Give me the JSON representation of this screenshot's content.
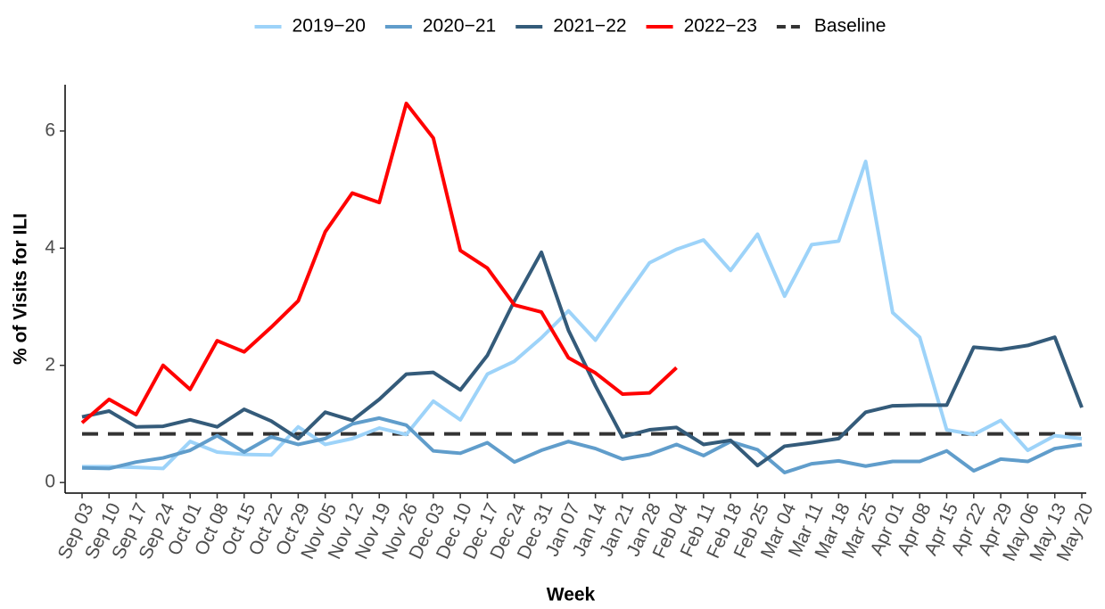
{
  "chart_data": {
    "type": "line",
    "x_label": "Week",
    "y_label": "% of Visits for ILI",
    "categories": [
      "Sep 03",
      "Sep 10",
      "Sep 17",
      "Sep 24",
      "Oct 01",
      "Oct 08",
      "Oct 15",
      "Oct 22",
      "Oct 29",
      "Nov 05",
      "Nov 12",
      "Nov 19",
      "Nov 26",
      "Dec 03",
      "Dec 10",
      "Dec 17",
      "Dec 24",
      "Dec 31",
      "Jan 07",
      "Jan 14",
      "Jan 21",
      "Jan 28",
      "Feb 04",
      "Feb 11",
      "Feb 18",
      "Feb 25",
      "Mar 04",
      "Mar 11",
      "Mar 18",
      "Mar 25",
      "Apr 01",
      "Apr 08",
      "Apr 15",
      "Apr 22",
      "Apr 29",
      "May 06",
      "May 13",
      "May 20"
    ],
    "series": [
      {
        "name": "2019−20",
        "color": "#9dd3f9",
        "values": [
          0.27,
          0.27,
          0.26,
          0.24,
          0.7,
          0.52,
          0.48,
          0.47,
          0.95,
          0.65,
          0.75,
          0.93,
          0.82,
          1.39,
          1.07,
          1.85,
          2.07,
          2.47,
          2.93,
          2.43,
          3.1,
          3.75,
          3.98,
          4.14,
          3.62,
          4.24,
          3.18,
          4.06,
          4.12,
          5.48,
          2.9,
          2.48,
          0.9,
          0.82,
          1.06,
          0.55,
          0.8,
          0.75
        ]
      },
      {
        "name": "2020−21",
        "color": "#609dcb",
        "values": [
          0.25,
          0.24,
          0.35,
          0.42,
          0.55,
          0.8,
          0.52,
          0.78,
          0.65,
          0.75,
          1.0,
          1.1,
          0.98,
          0.54,
          0.5,
          0.68,
          0.35,
          0.55,
          0.7,
          0.58,
          0.4,
          0.48,
          0.65,
          0.46,
          0.7,
          0.56,
          0.17,
          0.32,
          0.37,
          0.28,
          0.36,
          0.36,
          0.54,
          0.2,
          0.4,
          0.36,
          0.58,
          0.65
        ]
      },
      {
        "name": "2021−22",
        "color": "#345b7a",
        "values": [
          1.12,
          1.22,
          0.95,
          0.96,
          1.07,
          0.95,
          1.25,
          1.05,
          0.75,
          1.2,
          1.06,
          1.42,
          1.85,
          1.88,
          1.58,
          2.17,
          3.1,
          3.93,
          2.6,
          1.65,
          0.78,
          0.9,
          0.94,
          0.65,
          0.72,
          0.29,
          0.62,
          0.68,
          0.75,
          1.2,
          1.31,
          1.32,
          1.32,
          2.31,
          2.27,
          2.34,
          2.48,
          1.28
        ]
      },
      {
        "name": "2022−23",
        "color": "#ff0000",
        "values": [
          1.02,
          1.42,
          1.16,
          2.0,
          1.59,
          2.42,
          2.23,
          2.65,
          3.1,
          4.28,
          4.94,
          4.78,
          6.47,
          5.88,
          3.96,
          3.66,
          3.03,
          2.91,
          2.13,
          1.87,
          1.51,
          1.53,
          1.96,
          null,
          null,
          null,
          null,
          null,
          null,
          null,
          null,
          null,
          null,
          null,
          null,
          null,
          null,
          null
        ]
      }
    ],
    "baseline": {
      "name": "Baseline",
      "color": "#333333",
      "value": 0.83
    },
    "ylim": [
      -0.18,
      6.79
    ],
    "yticks": [
      0,
      2,
      4,
      6
    ],
    "legend": "top",
    "grid": false
  }
}
